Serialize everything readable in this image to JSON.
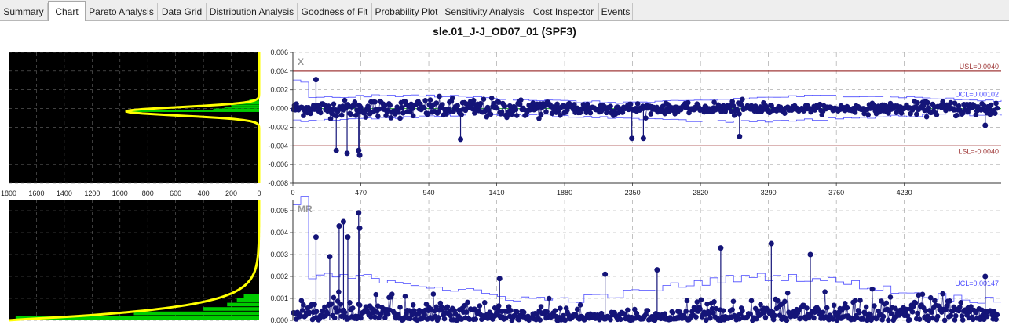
{
  "tabs": [
    {
      "label": "Summary",
      "active": false
    },
    {
      "label": "Chart",
      "active": true
    },
    {
      "label": "Pareto Analysis",
      "active": false
    },
    {
      "label": "Data Grid",
      "active": false
    },
    {
      "label": "Distribution Analysis",
      "active": false
    },
    {
      "label": "Goodness of Fit",
      "active": false
    },
    {
      "label": "Probability Plot",
      "active": false
    },
    {
      "label": "Sensitivity Analysis",
      "active": false
    },
    {
      "label": "Cost Inspector",
      "active": false
    },
    {
      "label": "Events",
      "active": false
    }
  ],
  "title": "sle.01_J-J_OD07_01 (SPF3)",
  "colors": {
    "data_points": "#141478",
    "limit_line": "#4a4aff",
    "spec_line": "#a03a3a",
    "center_line": "#22aa22",
    "histogram_bar": "#00cc00",
    "fit_curve": "#ffff00",
    "panel_bg": "#000000",
    "grid": "#9a9a9a"
  },
  "chart_data": [
    {
      "type": "scatter",
      "panel_label": "X",
      "y_ticks": [
        "0.006",
        "0.004",
        "0.002",
        "0.000",
        "-0.002",
        "-0.004",
        "-0.006",
        "-0.008"
      ],
      "ylim": [
        -0.008,
        0.006
      ],
      "x_ticks": [
        "0",
        "470",
        "940",
        "1410",
        "1880",
        "2350",
        "2820",
        "3290",
        "3760",
        "4230"
      ],
      "xlim": [
        0,
        4900
      ],
      "grid": true,
      "spec_lines": [
        {
          "label": "USL=0.0040",
          "value": 0.004
        },
        {
          "label": "LSL=-0.0040",
          "value": -0.004
        }
      ],
      "limit_label": "UCL=0.00102",
      "ucl": 0.00102,
      "center": 0.0,
      "notable_points": [
        {
          "x": 160,
          "y": 0.0031
        },
        {
          "x": 300,
          "y": -0.0045
        },
        {
          "x": 375,
          "y": -0.0048
        },
        {
          "x": 455,
          "y": -0.0045
        },
        {
          "x": 462,
          "y": -0.005
        },
        {
          "x": 1160,
          "y": -0.0033
        },
        {
          "x": 2345,
          "y": -0.0032
        },
        {
          "x": 2425,
          "y": -0.0032
        },
        {
          "x": 3090,
          "y": -0.003
        },
        {
          "x": 4790,
          "y": -0.0018
        }
      ],
      "histogram_x_ticks": [
        "1800",
        "1600",
        "1400",
        "1200",
        "1000",
        "800",
        "600",
        "400",
        "200",
        "0"
      ],
      "histogram_xlim": [
        0,
        1800
      ],
      "histogram_bins": [
        {
          "y": -0.0004,
          "count": 920
        },
        {
          "y": -0.0002,
          "count": 330
        },
        {
          "y": 0.0,
          "count": 250
        },
        {
          "y": 0.0002,
          "count": 200
        },
        {
          "y": 0.0004,
          "count": 150
        },
        {
          "y": 0.0006,
          "count": 100
        },
        {
          "y": 0.0008,
          "count": 70
        }
      ]
    },
    {
      "type": "scatter",
      "panel_label": "MR",
      "y_ticks": [
        "0.005",
        "0.004",
        "0.003",
        "0.002",
        "0.001",
        "0.000"
      ],
      "ylim": [
        0.0,
        0.0055
      ],
      "x_ticks": [
        "0",
        "470",
        "940",
        "1410",
        "1880",
        "2350",
        "2820",
        "3290",
        "3760",
        "4230"
      ],
      "xlim": [
        0,
        4900
      ],
      "grid": true,
      "limit_label": "UCL=0.00147",
      "ucl": 0.00147,
      "notable_points": [
        {
          "x": 160,
          "y": 0.0038
        },
        {
          "x": 255,
          "y": 0.0029
        },
        {
          "x": 320,
          "y": 0.0043
        },
        {
          "x": 350,
          "y": 0.0045
        },
        {
          "x": 380,
          "y": 0.0038
        },
        {
          "x": 455,
          "y": 0.0049
        },
        {
          "x": 462,
          "y": 0.0042
        },
        {
          "x": 1430,
          "y": 0.0019
        },
        {
          "x": 2160,
          "y": 0.0021
        },
        {
          "x": 2520,
          "y": 0.0023
        },
        {
          "x": 2960,
          "y": 0.0033
        },
        {
          "x": 3310,
          "y": 0.0035
        },
        {
          "x": 3580,
          "y": 0.003
        },
        {
          "x": 4790,
          "y": 0.002
        }
      ],
      "histogram_bins": [
        {
          "y": 0.0,
          "count": 1750
        },
        {
          "y": 0.0002,
          "count": 900
        },
        {
          "y": 0.0004,
          "count": 400
        },
        {
          "y": 0.0006,
          "count": 230
        },
        {
          "y": 0.0008,
          "count": 160
        },
        {
          "y": 0.001,
          "count": 110
        }
      ]
    }
  ]
}
